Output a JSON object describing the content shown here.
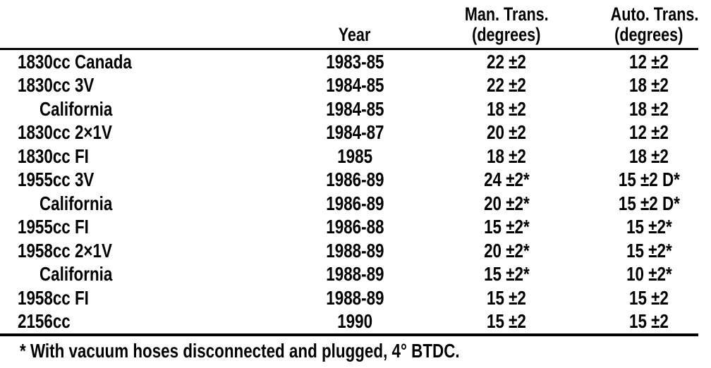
{
  "table": {
    "header": {
      "engine": "",
      "year": "Year",
      "man_line1": "Man. Trans.",
      "man_line2": "(degrees)",
      "auto_line1": "Auto. Trans.",
      "auto_line2": "(degrees)"
    },
    "rows": [
      {
        "label": "1830cc Canada",
        "indent": false,
        "year": "1983-85",
        "man": "22 ±2",
        "auto": "12 ±2"
      },
      {
        "label": "1830cc 3V",
        "indent": false,
        "year": "1984-85",
        "man": "22 ±2",
        "auto": "18 ±2"
      },
      {
        "label": "California",
        "indent": true,
        "year": "1984-85",
        "man": "18 ±2",
        "auto": "18 ±2"
      },
      {
        "label": "1830cc 2×1V",
        "indent": false,
        "year": "1984-87",
        "man": "20 ±2",
        "auto": "12 ±2"
      },
      {
        "label": "1830cc FI",
        "indent": false,
        "year": "1985",
        "man": "18 ±2",
        "auto": "18 ±2"
      },
      {
        "label": "1955cc 3V",
        "indent": false,
        "year": "1986-89",
        "man": "24 ±2*",
        "auto": "15 ±2 D*"
      },
      {
        "label": "California",
        "indent": true,
        "year": "1986-89",
        "man": "20 ±2*",
        "auto": "15 ±2 D*"
      },
      {
        "label": "1955cc FI",
        "indent": false,
        "year": "1986-88",
        "man": "15 ±2*",
        "auto": "15 ±2*"
      },
      {
        "label": "1958cc 2×1V",
        "indent": false,
        "year": "1988-89",
        "man": "20 ±2*",
        "auto": "15 ±2*"
      },
      {
        "label": "California",
        "indent": true,
        "year": "1988-89",
        "man": "15 ±2*",
        "auto": "10 ±2*"
      },
      {
        "label": "1958cc FI",
        "indent": false,
        "year": "1988-89",
        "man": "15 ±2",
        "auto": "15 ±2"
      },
      {
        "label": "2156cc",
        "indent": false,
        "year": "1990",
        "man": "15 ±2",
        "auto": "15 ±2"
      }
    ],
    "footnote": "* With vacuum hoses disconnected and plugged, 4° BTDC.",
    "colors": {
      "text": "#000000",
      "background": "#ffffff"
    }
  }
}
